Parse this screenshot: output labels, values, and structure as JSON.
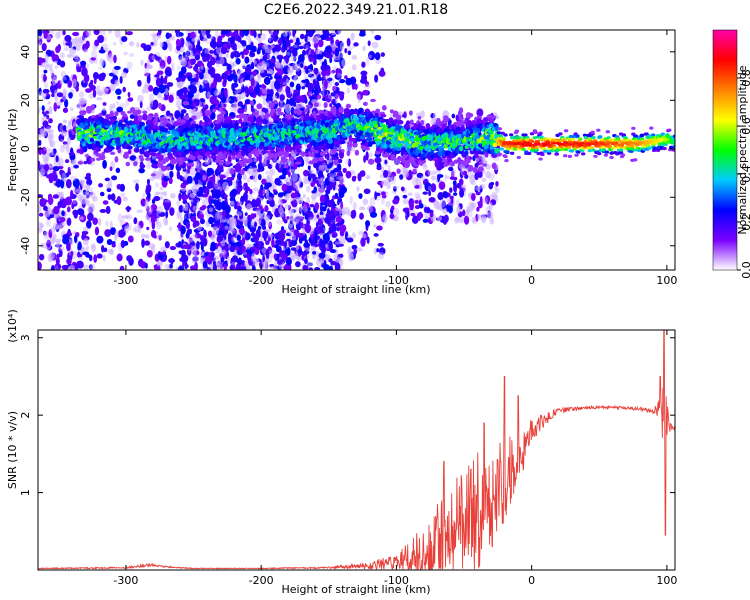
{
  "chart_data": [
    {
      "type": "heatmap",
      "title": "C2E6.2022.349.21.01.R18",
      "xlabel": "Height of straight line (km)",
      "ylabel": "Frequency (Hz)",
      "xlim": [
        -365,
        106
      ],
      "ylim": [
        -50,
        49
      ],
      "xticks": [
        -300,
        -200,
        -100,
        0,
        100
      ],
      "yticks": [
        -40,
        -20,
        0,
        20,
        40
      ],
      "colorbar": {
        "label": "Normalized spectral amplitude",
        "range": [
          0.0,
          1.0
        ],
        "ticks": [
          0.0,
          0.2,
          0.4,
          0.6,
          0.8
        ],
        "colors": [
          "#ffffff",
          "#7a00ff",
          "#0000ff",
          "#00ccff",
          "#00ff00",
          "#ffff00",
          "#ff8000",
          "#ff0000",
          "#ff00aa"
        ]
      },
      "ridge": {
        "x": [
          -335,
          -300,
          -270,
          -150,
          -130,
          -110,
          -80,
          -50,
          -30,
          -20,
          0,
          50,
          80,
          100,
          106
        ],
        "y": [
          6,
          6,
          3,
          7,
          10,
          6,
          2,
          3,
          5,
          2,
          2,
          2,
          2,
          4,
          3
        ],
        "peak_amplitude": [
          0.55,
          0.5,
          0.45,
          0.45,
          0.5,
          0.6,
          0.5,
          0.5,
          0.55,
          0.85,
          0.9,
          0.85,
          0.75,
          0.6,
          0.45
        ]
      },
      "scatter_regions": [
        {
          "x": [
            -365,
            -325
          ],
          "y": [
            -50,
            49
          ],
          "density": "medium"
        },
        {
          "x": [
            -325,
            -285
          ],
          "y": [
            -50,
            49
          ],
          "density": "light"
        },
        {
          "x": [
            -285,
            -265
          ],
          "y": [
            -50,
            49
          ],
          "density": "medium"
        },
        {
          "x": [
            -262,
            -140
          ],
          "y": [
            -50,
            49
          ],
          "density": "heavy"
        },
        {
          "x": [
            -140,
            -110
          ],
          "y": [
            -45,
            49
          ],
          "density": "light"
        },
        {
          "x": [
            -110,
            -25
          ],
          "y": [
            -30,
            15
          ],
          "density": "medium"
        }
      ]
    },
    {
      "type": "line",
      "xlabel": "Height of straight line (km)",
      "ylabel": "SNR (10 * v/v)",
      "y_multiplier": "(x10⁴)",
      "xlim": [
        -365,
        106
      ],
      "ylim": [
        0,
        3.1
      ],
      "xticks": [
        -300,
        -200,
        -100,
        0,
        100
      ],
      "yticks": [
        1,
        2,
        3
      ],
      "series": [
        {
          "color": "#e8413a",
          "x": [
            -365,
            -300,
            -285,
            -280,
            -270,
            -250,
            -200,
            -150,
            -120,
            -100,
            -90,
            -80,
            -70,
            -60,
            -50,
            -40,
            -30,
            -25,
            -20,
            -10,
            0,
            10,
            20,
            30,
            40,
            60,
            80,
            90,
            95,
            98,
            100,
            102,
            106
          ],
          "y": [
            0.02,
            0.03,
            0.06,
            0.07,
            0.04,
            0.02,
            0.02,
            0.03,
            0.06,
            0.1,
            0.18,
            0.3,
            0.45,
            0.6,
            0.8,
            0.95,
            1.1,
            1.3,
            1.2,
            1.5,
            1.8,
            1.95,
            2.05,
            2.08,
            2.1,
            2.1,
            2.08,
            2.05,
            2.1,
            2.2,
            1.9,
            1.85,
            1.85
          ],
          "noise": [
            0.005,
            0.01,
            0.02,
            0.02,
            0.01,
            0.005,
            0.005,
            0.01,
            0.05,
            0.1,
            0.2,
            0.35,
            0.45,
            0.55,
            0.6,
            0.6,
            0.55,
            0.5,
            0.5,
            0.3,
            0.15,
            0.08,
            0.04,
            0.03,
            0.02,
            0.02,
            0.02,
            0.03,
            0.15,
            0.4,
            0.3,
            0.1,
            0.05
          ],
          "spikes": [
            [
              -65,
              1.4
            ],
            [
              -45,
              1.3
            ],
            [
              -35,
              1.9
            ],
            [
              -20,
              2.5
            ],
            [
              -10,
              2.25
            ],
            [
              95,
              2.5
            ],
            [
              98,
              3.1
            ],
            [
              99,
              0.45
            ]
          ]
        }
      ]
    }
  ]
}
